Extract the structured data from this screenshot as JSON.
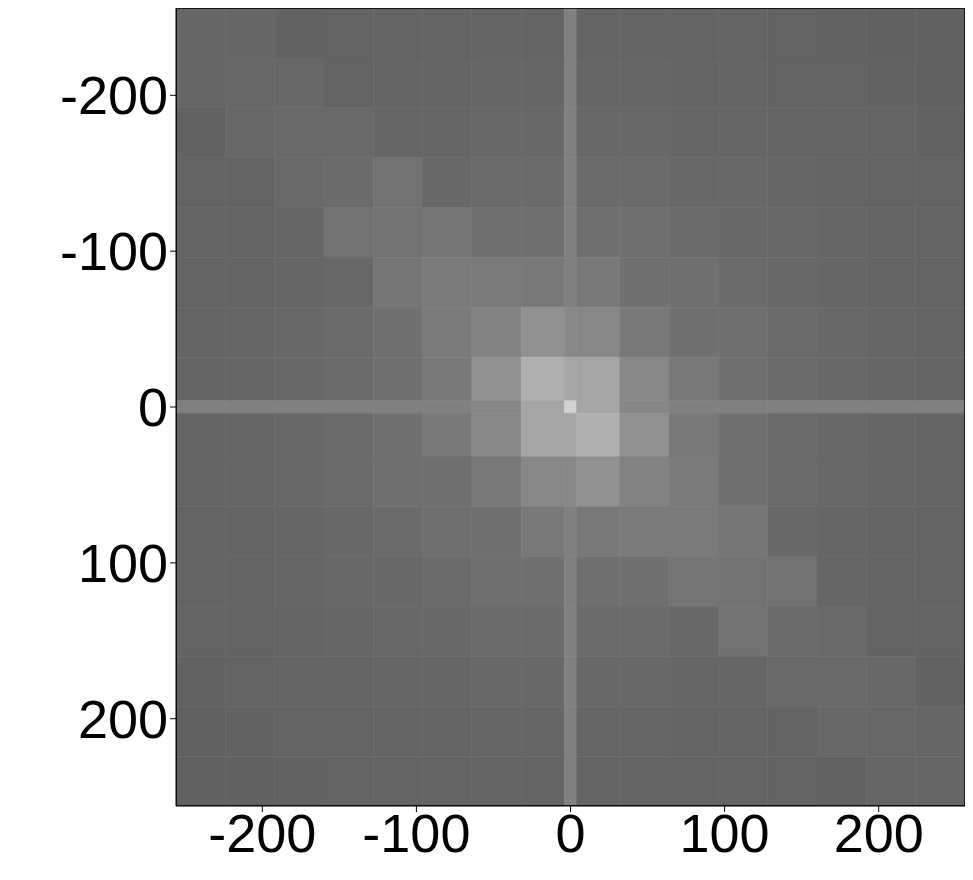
{
  "chart_data": {
    "type": "heatmap",
    "xlim": [
      -256,
      256
    ],
    "ylim": [
      256,
      -256
    ],
    "xticks": [
      -200,
      -100,
      0,
      100,
      200
    ],
    "yticks": [
      -200,
      -100,
      0,
      100,
      200
    ],
    "grid": false,
    "x_edges": [
      -256,
      -224,
      -192,
      -160,
      -128,
      -96,
      -64,
      -32,
      -4,
      4,
      32,
      64,
      96,
      128,
      160,
      192,
      224,
      256
    ],
    "y_edges": [
      -256,
      -224,
      -192,
      -160,
      -128,
      -96,
      -64,
      -32,
      -4,
      4,
      32,
      64,
      96,
      128,
      160,
      192,
      224,
      256
    ],
    "values": [
      [
        102,
        102,
        98,
        99,
        99,
        99,
        100,
        100,
        128,
        100,
        100,
        99,
        99,
        99,
        98,
        97,
        97
      ],
      [
        102,
        103,
        104,
        99,
        100,
        100,
        102,
        102,
        128,
        102,
        102,
        100,
        100,
        99,
        99,
        98,
        97
      ],
      [
        98,
        104,
        105,
        105,
        102,
        102,
        104,
        104,
        128,
        104,
        104,
        102,
        102,
        100,
        100,
        99,
        98
      ],
      [
        99,
        99,
        105,
        107,
        114,
        104,
        107,
        107,
        128,
        107,
        107,
        104,
        104,
        102,
        100,
        99,
        99
      ],
      [
        99,
        100,
        102,
        114,
        114,
        117,
        112,
        112,
        128,
        112,
        112,
        107,
        104,
        104,
        102,
        100,
        99
      ],
      [
        99,
        100,
        102,
        104,
        117,
        122,
        122,
        120,
        128,
        120,
        112,
        112,
        107,
        104,
        102,
        100,
        99
      ],
      [
        100,
        102,
        104,
        107,
        112,
        122,
        130,
        145,
        135,
        135,
        120,
        112,
        112,
        107,
        104,
        102,
        100
      ],
      [
        100,
        102,
        104,
        107,
        112,
        120,
        145,
        175,
        165,
        165,
        135,
        120,
        112,
        107,
        104,
        102,
        100
      ],
      [
        128,
        128,
        128,
        128,
        128,
        128,
        135,
        165,
        210,
        165,
        135,
        128,
        128,
        128,
        128,
        128,
        128
      ],
      [
        100,
        102,
        104,
        107,
        112,
        120,
        135,
        165,
        165,
        175,
        145,
        120,
        112,
        107,
        104,
        102,
        100
      ],
      [
        100,
        102,
        104,
        107,
        112,
        112,
        120,
        135,
        135,
        145,
        130,
        122,
        112,
        107,
        104,
        102,
        100
      ],
      [
        99,
        100,
        102,
        104,
        107,
        112,
        112,
        120,
        128,
        120,
        122,
        122,
        117,
        104,
        102,
        100,
        99
      ],
      [
        99,
        100,
        102,
        104,
        104,
        107,
        112,
        112,
        128,
        112,
        112,
        117,
        114,
        114,
        102,
        100,
        99
      ],
      [
        99,
        99,
        100,
        102,
        104,
        104,
        107,
        107,
        128,
        107,
        107,
        104,
        114,
        107,
        105,
        99,
        99
      ],
      [
        98,
        99,
        100,
        100,
        102,
        102,
        104,
        104,
        128,
        104,
        104,
        102,
        102,
        105,
        105,
        104,
        98
      ],
      [
        97,
        98,
        99,
        99,
        100,
        100,
        102,
        102,
        128,
        102,
        102,
        100,
        100,
        99,
        104,
        103,
        102
      ],
      [
        97,
        97,
        98,
        99,
        99,
        99,
        100,
        100,
        128,
        100,
        100,
        99,
        99,
        99,
        98,
        102,
        102
      ]
    ]
  }
}
